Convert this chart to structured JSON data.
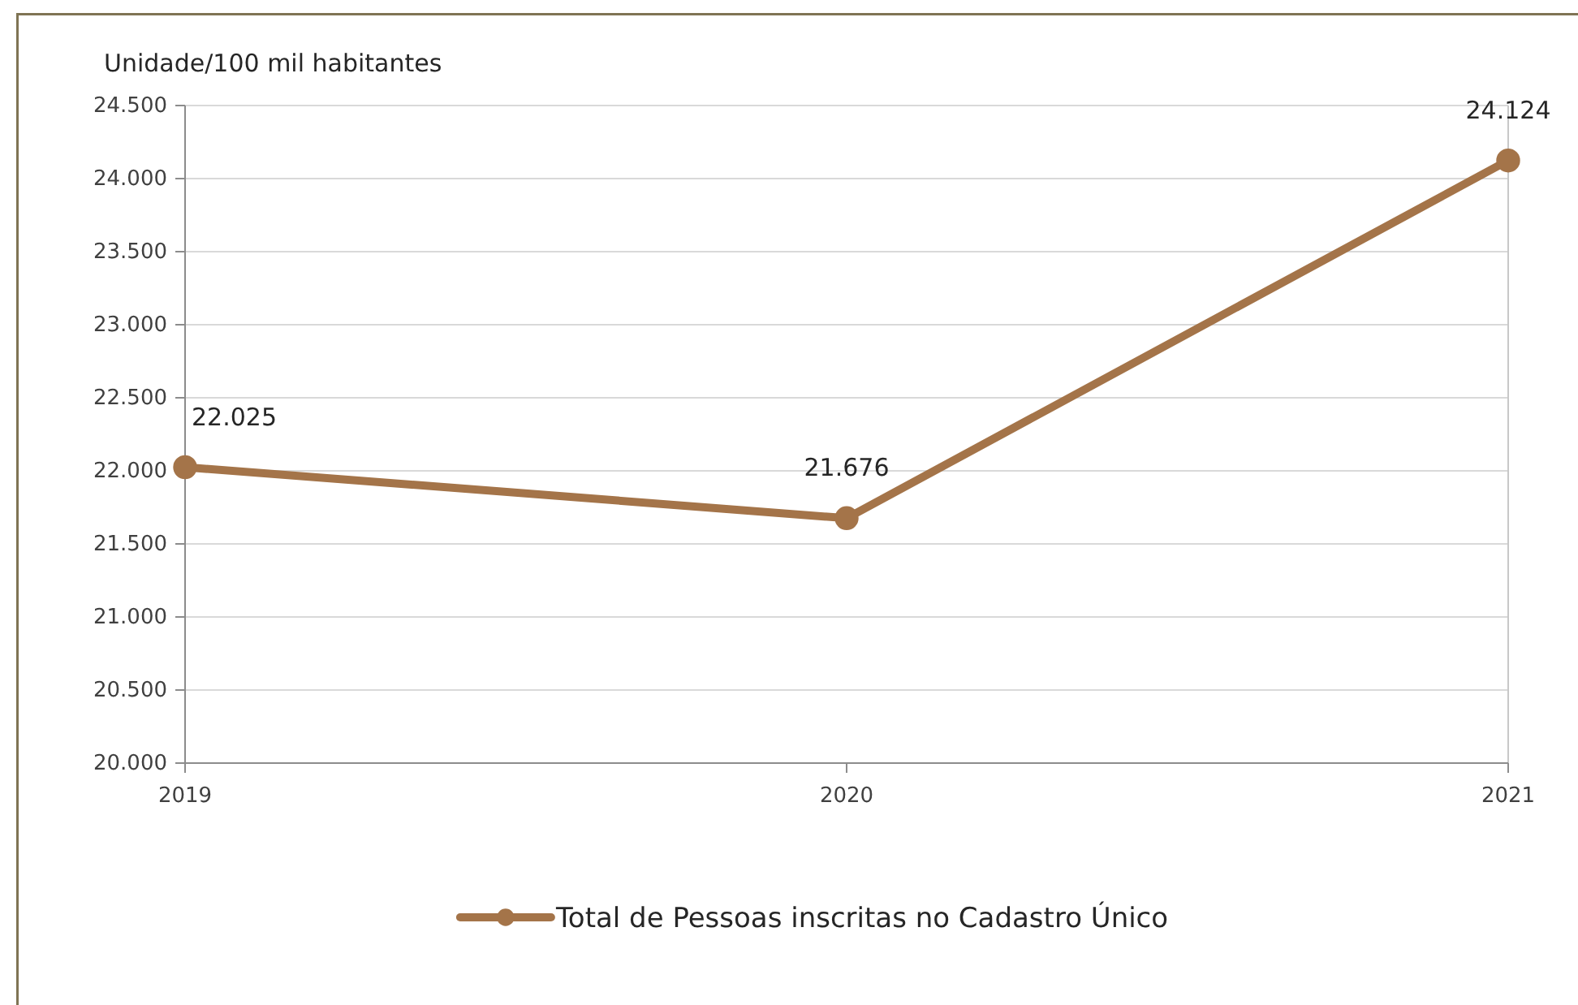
{
  "chart_data": {
    "type": "line",
    "ylabel": "Unidade/100 mil habitantes",
    "categories": [
      "2019",
      "2020",
      "2021"
    ],
    "series": [
      {
        "name": "Total de Pessoas inscritas no Cadastro Único",
        "color": "#a47449",
        "values": [
          22025,
          21676,
          24124
        ],
        "value_labels": [
          "22.025",
          "21.676",
          "24.124"
        ]
      }
    ],
    "ylim": [
      20000,
      24500
    ],
    "yticks": [
      {
        "value": 20000,
        "label": "20.000"
      },
      {
        "value": 20500,
        "label": "20.500"
      },
      {
        "value": 21000,
        "label": "21.000"
      },
      {
        "value": 21500,
        "label": "21.500"
      },
      {
        "value": 22000,
        "label": "22.000"
      },
      {
        "value": 22500,
        "label": "22.500"
      },
      {
        "value": 23000,
        "label": "23.000"
      },
      {
        "value": 23500,
        "label": "23.500"
      },
      {
        "value": 24000,
        "label": "24.000"
      },
      {
        "value": 24500,
        "label": "24.500"
      }
    ],
    "grid": "y",
    "legend": "bottom",
    "marker": "circle",
    "line_style": "solid"
  }
}
